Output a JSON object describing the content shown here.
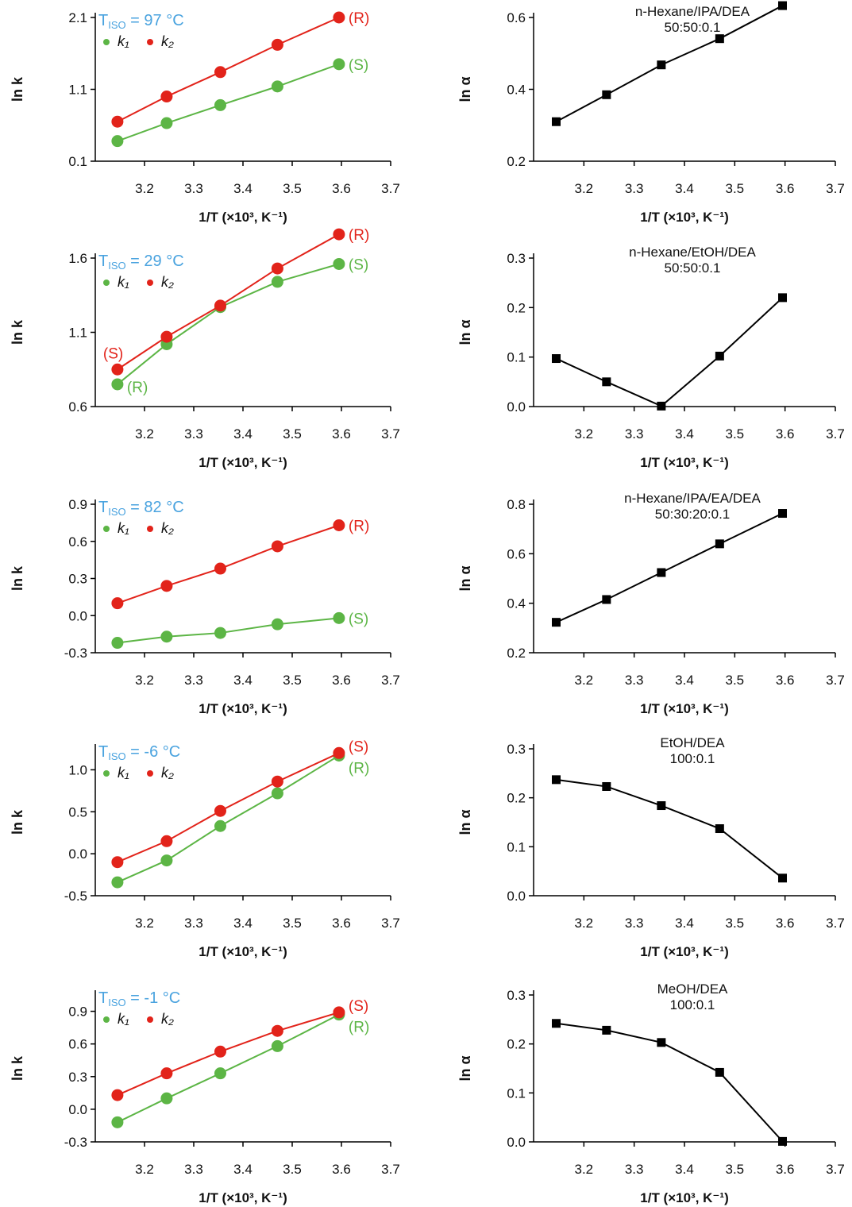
{
  "chart_data": [
    {
      "type": "line",
      "xlabel": "1/T (×10³, K⁻¹)",
      "ylabel": "ln k",
      "xticks": [
        "3.2",
        "3.3",
        "3.4",
        "3.5",
        "3.6",
        "3.7"
      ],
      "xlim": [
        3.1,
        3.7
      ],
      "ylim": [
        0.1,
        2.1
      ],
      "yticks": [
        "0.1",
        "1.1",
        "2.1"
      ],
      "tiso": "97 °C",
      "legend": [
        "k₁",
        "k₂"
      ],
      "x": [
        3.145,
        3.245,
        3.354,
        3.47,
        3.595
      ],
      "series": [
        {
          "name": "k₁",
          "end_label": "(S)",
          "color": "#5cb545",
          "values": [
            0.38,
            0.63,
            0.88,
            1.14,
            1.45
          ]
        },
        {
          "name": "k₂",
          "end_label": "(R)",
          "color": "#e2231a",
          "values": [
            0.65,
            1.0,
            1.34,
            1.72,
            2.1
          ]
        }
      ]
    },
    {
      "type": "line",
      "xlabel": "1/T (×10³, K⁻¹)",
      "ylabel": "ln α",
      "xticks": [
        "3.2",
        "3.3",
        "3.4",
        "3.5",
        "3.6",
        "3.7"
      ],
      "xlim": [
        3.1,
        3.7
      ],
      "ylim": [
        0.2,
        0.6
      ],
      "yticks": [
        "0.2",
        "0.4",
        "0.6"
      ],
      "annotation": [
        "n-Hexane/IPA/DEA",
        "50:50:0.1"
      ],
      "x": [
        3.145,
        3.245,
        3.354,
        3.47,
        3.595
      ],
      "series": [
        {
          "color": "#000000",
          "values": [
            0.31,
            0.385,
            0.468,
            0.541,
            0.633
          ]
        }
      ]
    },
    {
      "type": "line",
      "xlabel": "1/T (×10³, K⁻¹)",
      "ylabel": "ln k",
      "xticks": [
        "3.2",
        "3.3",
        "3.4",
        "3.5",
        "3.6",
        "3.7"
      ],
      "xlim": [
        3.1,
        3.7
      ],
      "ylim": [
        0.6,
        1.6
      ],
      "yticks": [
        "0.6",
        "1.1",
        "1.6"
      ],
      "tiso": "29 °C",
      "legend": [
        "k₁",
        "k₂"
      ],
      "x": [
        3.145,
        3.245,
        3.354,
        3.47,
        3.595
      ],
      "start_labels": [
        {
          "text": "(S)",
          "color": "#e2231a"
        },
        {
          "text": "(R)",
          "color": "#5cb545"
        }
      ],
      "series": [
        {
          "name": "k₁",
          "end_label": "(S)",
          "color": "#5cb545",
          "values": [
            0.75,
            1.02,
            1.27,
            1.44,
            1.56
          ]
        },
        {
          "name": "k₂",
          "end_label": "(R)",
          "color": "#e2231a",
          "values": [
            0.85,
            1.07,
            1.28,
            1.53,
            1.76
          ]
        }
      ]
    },
    {
      "type": "line",
      "xlabel": "1/T (×10³, K⁻¹)",
      "ylabel": "ln α",
      "xticks": [
        "3.2",
        "3.3",
        "3.4",
        "3.5",
        "3.6",
        "3.7"
      ],
      "xlim": [
        3.1,
        3.7
      ],
      "ylim": [
        0.0,
        0.3
      ],
      "yticks": [
        "0.0",
        "0.1",
        "0.2",
        "0.3"
      ],
      "annotation": [
        "n-Hexane/EtOH/DEA",
        "50:50:0.1"
      ],
      "x": [
        3.145,
        3.245,
        3.354,
        3.47,
        3.595
      ],
      "series": [
        {
          "color": "#000000",
          "values": [
            0.097,
            0.05,
            0.001,
            0.102,
            0.22
          ]
        }
      ]
    },
    {
      "type": "line",
      "xlabel": "1/T (×10³, K⁻¹)",
      "ylabel": "ln k",
      "xticks": [
        "3.2",
        "3.3",
        "3.4",
        "3.5",
        "3.6",
        "3.7"
      ],
      "xlim": [
        3.1,
        3.7
      ],
      "ylim": [
        -0.3,
        0.9
      ],
      "yticks": [
        "-0.3",
        "0.0",
        "0.3",
        "0.6",
        "0.9"
      ],
      "tiso": "82 °C",
      "legend": [
        "k₁",
        "k₂"
      ],
      "x": [
        3.145,
        3.245,
        3.354,
        3.47,
        3.595
      ],
      "series": [
        {
          "name": "k₁",
          "end_label": "(S)",
          "color": "#5cb545",
          "values": [
            -0.22,
            -0.17,
            -0.14,
            -0.07,
            -0.02
          ]
        },
        {
          "name": "k₂",
          "end_label": "(R)",
          "color": "#e2231a",
          "values": [
            0.1,
            0.24,
            0.38,
            0.56,
            0.73
          ]
        }
      ]
    },
    {
      "type": "line",
      "xlabel": "1/T (×10³, K⁻¹)",
      "ylabel": "ln α",
      "xticks": [
        "3.2",
        "3.3",
        "3.4",
        "3.5",
        "3.6",
        "3.7"
      ],
      "xlim": [
        3.1,
        3.7
      ],
      "ylim": [
        0.2,
        0.8
      ],
      "yticks": [
        "0.2",
        "0.4",
        "0.6",
        "0.8"
      ],
      "annotation": [
        "n-Hexane/IPA/EA/DEA",
        "50:30:20:0.1"
      ],
      "x": [
        3.145,
        3.245,
        3.354,
        3.47,
        3.595
      ],
      "series": [
        {
          "color": "#000000",
          "values": [
            0.323,
            0.415,
            0.524,
            0.64,
            0.763
          ]
        }
      ]
    },
    {
      "type": "line",
      "xlabel": "1/T (×10³, K⁻¹)",
      "ylabel": "ln k",
      "xticks": [
        "3.2",
        "3.3",
        "3.4",
        "3.5",
        "3.6",
        "3.7"
      ],
      "xlim": [
        3.1,
        3.7
      ],
      "ylim": [
        -0.5,
        1.25
      ],
      "yticks": [
        "-0.5",
        "0.0",
        "0.5",
        "1.0"
      ],
      "tiso": "-6 °C",
      "legend": [
        "k₁",
        "k₂"
      ],
      "x": [
        3.145,
        3.245,
        3.354,
        3.47,
        3.595
      ],
      "end_labels_stacked": true,
      "series": [
        {
          "name": "k₁",
          "end_label": "(R)",
          "color": "#5cb545",
          "values": [
            -0.34,
            -0.08,
            0.33,
            0.72,
            1.17
          ]
        },
        {
          "name": "k₂",
          "end_label": "(S)",
          "color": "#e2231a",
          "values": [
            -0.1,
            0.15,
            0.51,
            0.86,
            1.2
          ]
        }
      ]
    },
    {
      "type": "line",
      "xlabel": "1/T (×10³, K⁻¹)",
      "ylabel": "ln α",
      "xticks": [
        "3.2",
        "3.3",
        "3.4",
        "3.5",
        "3.6",
        "3.7"
      ],
      "xlim": [
        3.1,
        3.7
      ],
      "ylim": [
        0.0,
        0.3
      ],
      "yticks": [
        "0.0",
        "0.1",
        "0.2",
        "0.3"
      ],
      "annotation": [
        "EtOH/DEA",
        "100:0.1"
      ],
      "x": [
        3.145,
        3.245,
        3.354,
        3.47,
        3.595
      ],
      "series": [
        {
          "color": "#000000",
          "values": [
            0.237,
            0.223,
            0.184,
            0.137,
            0.036
          ]
        }
      ]
    },
    {
      "type": "line",
      "xlabel": "1/T (×10³, K⁻¹)",
      "ylabel": "ln k",
      "xticks": [
        "3.2",
        "3.3",
        "3.4",
        "3.5",
        "3.6",
        "3.7"
      ],
      "xlim": [
        3.1,
        3.7
      ],
      "ylim": [
        -0.3,
        1.05
      ],
      "yticks": [
        "-0.3",
        "0.0",
        "0.3",
        "0.6",
        "0.9"
      ],
      "tiso": "-1 °C",
      "legend": [
        "k₁",
        "k₂"
      ],
      "x": [
        3.145,
        3.245,
        3.354,
        3.47,
        3.595
      ],
      "end_labels_stacked": true,
      "series": [
        {
          "name": "k₁",
          "end_label": "(R)",
          "color": "#5cb545",
          "values": [
            -0.12,
            0.1,
            0.33,
            0.58,
            0.87
          ]
        },
        {
          "name": "k₂",
          "end_label": "(S)",
          "color": "#e2231a",
          "values": [
            0.13,
            0.33,
            0.53,
            0.72,
            0.89
          ]
        }
      ]
    },
    {
      "type": "line",
      "xlabel": "1/T (×10³, K⁻¹)",
      "ylabel": "ln α",
      "xticks": [
        "3.2",
        "3.3",
        "3.4",
        "3.5",
        "3.6",
        "3.7"
      ],
      "xlim": [
        3.1,
        3.7
      ],
      "ylim": [
        0.0,
        0.3
      ],
      "yticks": [
        "0.0",
        "0.1",
        "0.2",
        "0.3"
      ],
      "annotation": [
        "MeOH/DEA",
        "100:0.1"
      ],
      "x": [
        3.145,
        3.245,
        3.354,
        3.47,
        3.595
      ],
      "series": [
        {
          "color": "#000000",
          "values": [
            0.242,
            0.228,
            0.203,
            0.142,
            0.001
          ]
        }
      ]
    }
  ]
}
